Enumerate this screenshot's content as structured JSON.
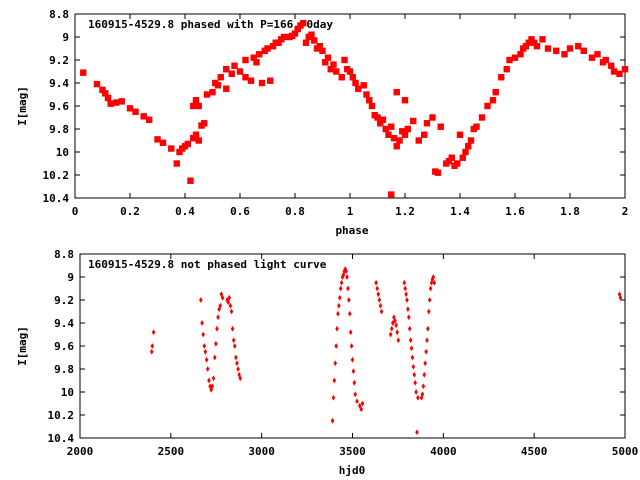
{
  "chart_data": [
    {
      "type": "scatter",
      "title": "160915-4529.8 phased with P=166.70day",
      "xlabel": "phase",
      "ylabel": "I[mag]",
      "xlim": [
        0,
        2
      ],
      "ylim": [
        10.4,
        8.8
      ],
      "y_inverted": true,
      "xticks": [
        "0",
        "0.2",
        "0.4",
        "0.6",
        "0.8",
        "1",
        "1.2",
        "1.4",
        "1.6",
        "1.8",
        "2"
      ],
      "yticks": [
        "8.8",
        "9",
        "9.2",
        "9.4",
        "9.6",
        "9.8",
        "10",
        "10.2",
        "10.4"
      ],
      "grid": false,
      "color": "#ff0000",
      "points": [
        [
          0.03,
          9.31
        ],
        [
          0.08,
          9.41
        ],
        [
          0.1,
          9.46
        ],
        [
          0.11,
          9.49
        ],
        [
          0.12,
          9.53
        ],
        [
          0.13,
          9.58
        ],
        [
          0.15,
          9.57
        ],
        [
          0.17,
          9.56
        ],
        [
          0.2,
          9.62
        ],
        [
          0.22,
          9.65
        ],
        [
          0.25,
          9.69
        ],
        [
          0.27,
          9.72
        ],
        [
          0.3,
          9.89
        ],
        [
          0.32,
          9.92
        ],
        [
          0.35,
          9.97
        ],
        [
          0.37,
          10.1
        ],
        [
          0.38,
          10.0
        ],
        [
          0.39,
          9.97
        ],
        [
          0.4,
          9.95
        ],
        [
          0.41,
          9.93
        ],
        [
          0.42,
          10.25
        ],
        [
          0.43,
          9.88
        ],
        [
          0.44,
          9.85
        ],
        [
          0.45,
          9.9
        ],
        [
          0.46,
          9.77
        ],
        [
          0.47,
          9.75
        ],
        [
          0.43,
          9.6
        ],
        [
          0.44,
          9.55
        ],
        [
          0.45,
          9.6
        ],
        [
          0.48,
          9.5
        ],
        [
          0.5,
          9.48
        ],
        [
          0.51,
          9.4
        ],
        [
          0.52,
          9.42
        ],
        [
          0.53,
          9.35
        ],
        [
          0.55,
          9.45
        ],
        [
          0.55,
          9.28
        ],
        [
          0.57,
          9.32
        ],
        [
          0.58,
          9.25
        ],
        [
          0.6,
          9.3
        ],
        [
          0.62,
          9.2
        ],
        [
          0.62,
          9.35
        ],
        [
          0.64,
          9.38
        ],
        [
          0.65,
          9.18
        ],
        [
          0.66,
          9.22
        ],
        [
          0.67,
          9.15
        ],
        [
          0.68,
          9.4
        ],
        [
          0.69,
          9.12
        ],
        [
          0.7,
          9.1
        ],
        [
          0.71,
          9.38
        ],
        [
          0.72,
          9.08
        ],
        [
          0.73,
          9.05
        ],
        [
          0.74,
          9.05
        ],
        [
          0.75,
          9.02
        ],
        [
          0.76,
          9.0
        ],
        [
          0.78,
          9.0
        ],
        [
          0.79,
          8.99
        ],
        [
          0.8,
          8.97
        ],
        [
          0.81,
          8.93
        ],
        [
          0.82,
          8.9
        ],
        [
          0.83,
          8.88
        ],
        [
          0.84,
          9.05
        ],
        [
          0.85,
          9.0
        ],
        [
          0.86,
          8.98
        ],
        [
          0.87,
          9.03
        ],
        [
          0.88,
          9.1
        ],
        [
          0.89,
          9.08
        ],
        [
          0.9,
          9.12
        ],
        [
          0.91,
          9.22
        ],
        [
          0.92,
          9.18
        ],
        [
          0.93,
          9.28
        ],
        [
          0.94,
          9.24
        ],
        [
          0.95,
          9.3
        ],
        [
          0.97,
          9.35
        ],
        [
          0.98,
          9.2
        ],
        [
          0.99,
          9.28
        ],
        [
          1.0,
          9.3
        ],
        [
          1.01,
          9.35
        ],
        [
          1.02,
          9.4
        ],
        [
          1.03,
          9.45
        ],
        [
          1.05,
          9.42
        ],
        [
          1.06,
          9.5
        ],
        [
          1.07,
          9.55
        ],
        [
          1.08,
          9.6
        ],
        [
          1.09,
          9.68
        ],
        [
          1.1,
          9.7
        ],
        [
          1.11,
          9.75
        ],
        [
          1.12,
          9.72
        ],
        [
          1.13,
          9.8
        ],
        [
          1.14,
          9.85
        ],
        [
          1.15,
          9.78
        ],
        [
          1.16,
          9.88
        ],
        [
          1.17,
          9.95
        ],
        [
          1.18,
          9.9
        ],
        [
          1.19,
          9.82
        ],
        [
          1.2,
          9.85
        ],
        [
          1.21,
          9.8
        ],
        [
          1.15,
          10.37
        ],
        [
          1.17,
          9.48
        ],
        [
          1.2,
          9.55
        ],
        [
          1.23,
          9.73
        ],
        [
          1.25,
          9.9
        ],
        [
          1.27,
          9.85
        ],
        [
          1.28,
          9.75
        ],
        [
          1.3,
          9.7
        ],
        [
          1.31,
          10.17
        ],
        [
          1.32,
          10.18
        ],
        [
          1.33,
          9.78
        ],
        [
          1.35,
          10.1
        ],
        [
          1.36,
          10.08
        ],
        [
          1.37,
          10.05
        ],
        [
          1.38,
          10.12
        ],
        [
          1.39,
          10.1
        ],
        [
          1.4,
          9.85
        ],
        [
          1.41,
          10.05
        ],
        [
          1.42,
          10.0
        ],
        [
          1.43,
          9.95
        ],
        [
          1.44,
          9.9
        ],
        [
          1.45,
          9.8
        ],
        [
          1.46,
          9.78
        ],
        [
          1.48,
          9.7
        ],
        [
          1.5,
          9.6
        ],
        [
          1.52,
          9.55
        ],
        [
          1.53,
          9.48
        ],
        [
          1.55,
          9.35
        ],
        [
          1.57,
          9.28
        ],
        [
          1.58,
          9.2
        ],
        [
          1.6,
          9.18
        ],
        [
          1.62,
          9.15
        ],
        [
          1.63,
          9.1
        ],
        [
          1.64,
          9.08
        ],
        [
          1.65,
          9.05
        ],
        [
          1.66,
          9.02
        ],
        [
          1.67,
          9.05
        ],
        [
          1.68,
          9.08
        ],
        [
          1.7,
          9.02
        ],
        [
          1.72,
          9.1
        ],
        [
          1.75,
          9.12
        ],
        [
          1.78,
          9.15
        ],
        [
          1.8,
          9.1
        ],
        [
          1.83,
          9.08
        ],
        [
          1.85,
          9.12
        ],
        [
          1.88,
          9.18
        ],
        [
          1.9,
          9.15
        ],
        [
          1.92,
          9.22
        ],
        [
          1.93,
          9.2
        ],
        [
          1.95,
          9.25
        ],
        [
          1.96,
          9.3
        ],
        [
          1.98,
          9.32
        ],
        [
          2.0,
          9.28
        ]
      ]
    },
    {
      "type": "scatter",
      "title": "160915-4529.8 not phased light curve",
      "xlabel": "hjd0",
      "ylabel": "I[mag]",
      "xlim": [
        2000,
        5000
      ],
      "ylim": [
        10.4,
        8.8
      ],
      "y_inverted": true,
      "xticks": [
        "2000",
        "2500",
        "3000",
        "3500",
        "4000",
        "4500",
        "5000"
      ],
      "yticks": [
        "8.8",
        "9",
        "9.2",
        "9.4",
        "9.6",
        "9.8",
        "10",
        "10.2",
        "10.4"
      ],
      "grid": false,
      "color": "#ff0000",
      "points": [
        [
          2395,
          9.65
        ],
        [
          2398,
          9.6
        ],
        [
          2405,
          9.48
        ],
        [
          2665,
          9.2
        ],
        [
          2672,
          9.4
        ],
        [
          2678,
          9.5
        ],
        [
          2684,
          9.6
        ],
        [
          2690,
          9.65
        ],
        [
          2697,
          9.72
        ],
        [
          2703,
          9.8
        ],
        [
          2710,
          9.9
        ],
        [
          2716,
          9.95
        ],
        [
          2722,
          9.98
        ],
        [
          2728,
          9.95
        ],
        [
          2735,
          9.88
        ],
        [
          2742,
          9.7
        ],
        [
          2748,
          9.58
        ],
        [
          2754,
          9.45
        ],
        [
          2760,
          9.35
        ],
        [
          2766,
          9.28
        ],
        [
          2772,
          9.25
        ],
        [
          2778,
          9.15
        ],
        [
          2785,
          9.18
        ],
        [
          2810,
          9.2
        ],
        [
          2816,
          9.22
        ],
        [
          2822,
          9.18
        ],
        [
          2828,
          9.25
        ],
        [
          2834,
          9.3
        ],
        [
          2840,
          9.45
        ],
        [
          2846,
          9.55
        ],
        [
          2852,
          9.6
        ],
        [
          2858,
          9.7
        ],
        [
          2864,
          9.75
        ],
        [
          2870,
          9.8
        ],
        [
          2876,
          9.85
        ],
        [
          2882,
          9.88
        ],
        [
          3390,
          10.25
        ],
        [
          3395,
          10.05
        ],
        [
          3400,
          9.9
        ],
        [
          3405,
          9.75
        ],
        [
          3410,
          9.6
        ],
        [
          3415,
          9.45
        ],
        [
          3420,
          9.32
        ],
        [
          3425,
          9.25
        ],
        [
          3430,
          9.18
        ],
        [
          3435,
          9.1
        ],
        [
          3440,
          9.05
        ],
        [
          3445,
          9.0
        ],
        [
          3450,
          8.98
        ],
        [
          3455,
          8.95
        ],
        [
          3460,
          8.93
        ],
        [
          3465,
          8.95
        ],
        [
          3470,
          9.0
        ],
        [
          3475,
          9.1
        ],
        [
          3480,
          9.2
        ],
        [
          3485,
          9.32
        ],
        [
          3490,
          9.48
        ],
        [
          3495,
          9.6
        ],
        [
          3500,
          9.72
        ],
        [
          3505,
          9.82
        ],
        [
          3510,
          9.92
        ],
        [
          3515,
          10.02
        ],
        [
          3525,
          10.08
        ],
        [
          3540,
          10.12
        ],
        [
          3548,
          10.15
        ],
        [
          3555,
          10.1
        ],
        [
          3630,
          9.05
        ],
        [
          3636,
          9.1
        ],
        [
          3642,
          9.15
        ],
        [
          3648,
          9.2
        ],
        [
          3654,
          9.25
        ],
        [
          3660,
          9.3
        ],
        [
          3710,
          9.5
        ],
        [
          3716,
          9.45
        ],
        [
          3722,
          9.4
        ],
        [
          3728,
          9.35
        ],
        [
          3734,
          9.38
        ],
        [
          3740,
          9.42
        ],
        [
          3746,
          9.48
        ],
        [
          3752,
          9.55
        ],
        [
          3785,
          9.05
        ],
        [
          3790,
          9.1
        ],
        [
          3795,
          9.15
        ],
        [
          3800,
          9.2
        ],
        [
          3805,
          9.28
        ],
        [
          3810,
          9.35
        ],
        [
          3815,
          9.45
        ],
        [
          3820,
          9.55
        ],
        [
          3825,
          9.62
        ],
        [
          3830,
          9.7
        ],
        [
          3835,
          9.78
        ],
        [
          3840,
          9.85
        ],
        [
          3845,
          9.92
        ],
        [
          3850,
          10.0
        ],
        [
          3855,
          10.35
        ],
        [
          3860,
          10.05
        ],
        [
          3880,
          10.05
        ],
        [
          3885,
          10.02
        ],
        [
          3890,
          9.95
        ],
        [
          3895,
          9.85
        ],
        [
          3900,
          9.75
        ],
        [
          3905,
          9.65
        ],
        [
          3910,
          9.55
        ],
        [
          3915,
          9.45
        ],
        [
          3920,
          9.3
        ],
        [
          3925,
          9.2
        ],
        [
          3930,
          9.1
        ],
        [
          3935,
          9.05
        ],
        [
          3940,
          9.02
        ],
        [
          3945,
          9.0
        ],
        [
          3950,
          9.05
        ],
        [
          4970,
          9.15
        ],
        [
          4975,
          9.18
        ]
      ]
    }
  ]
}
